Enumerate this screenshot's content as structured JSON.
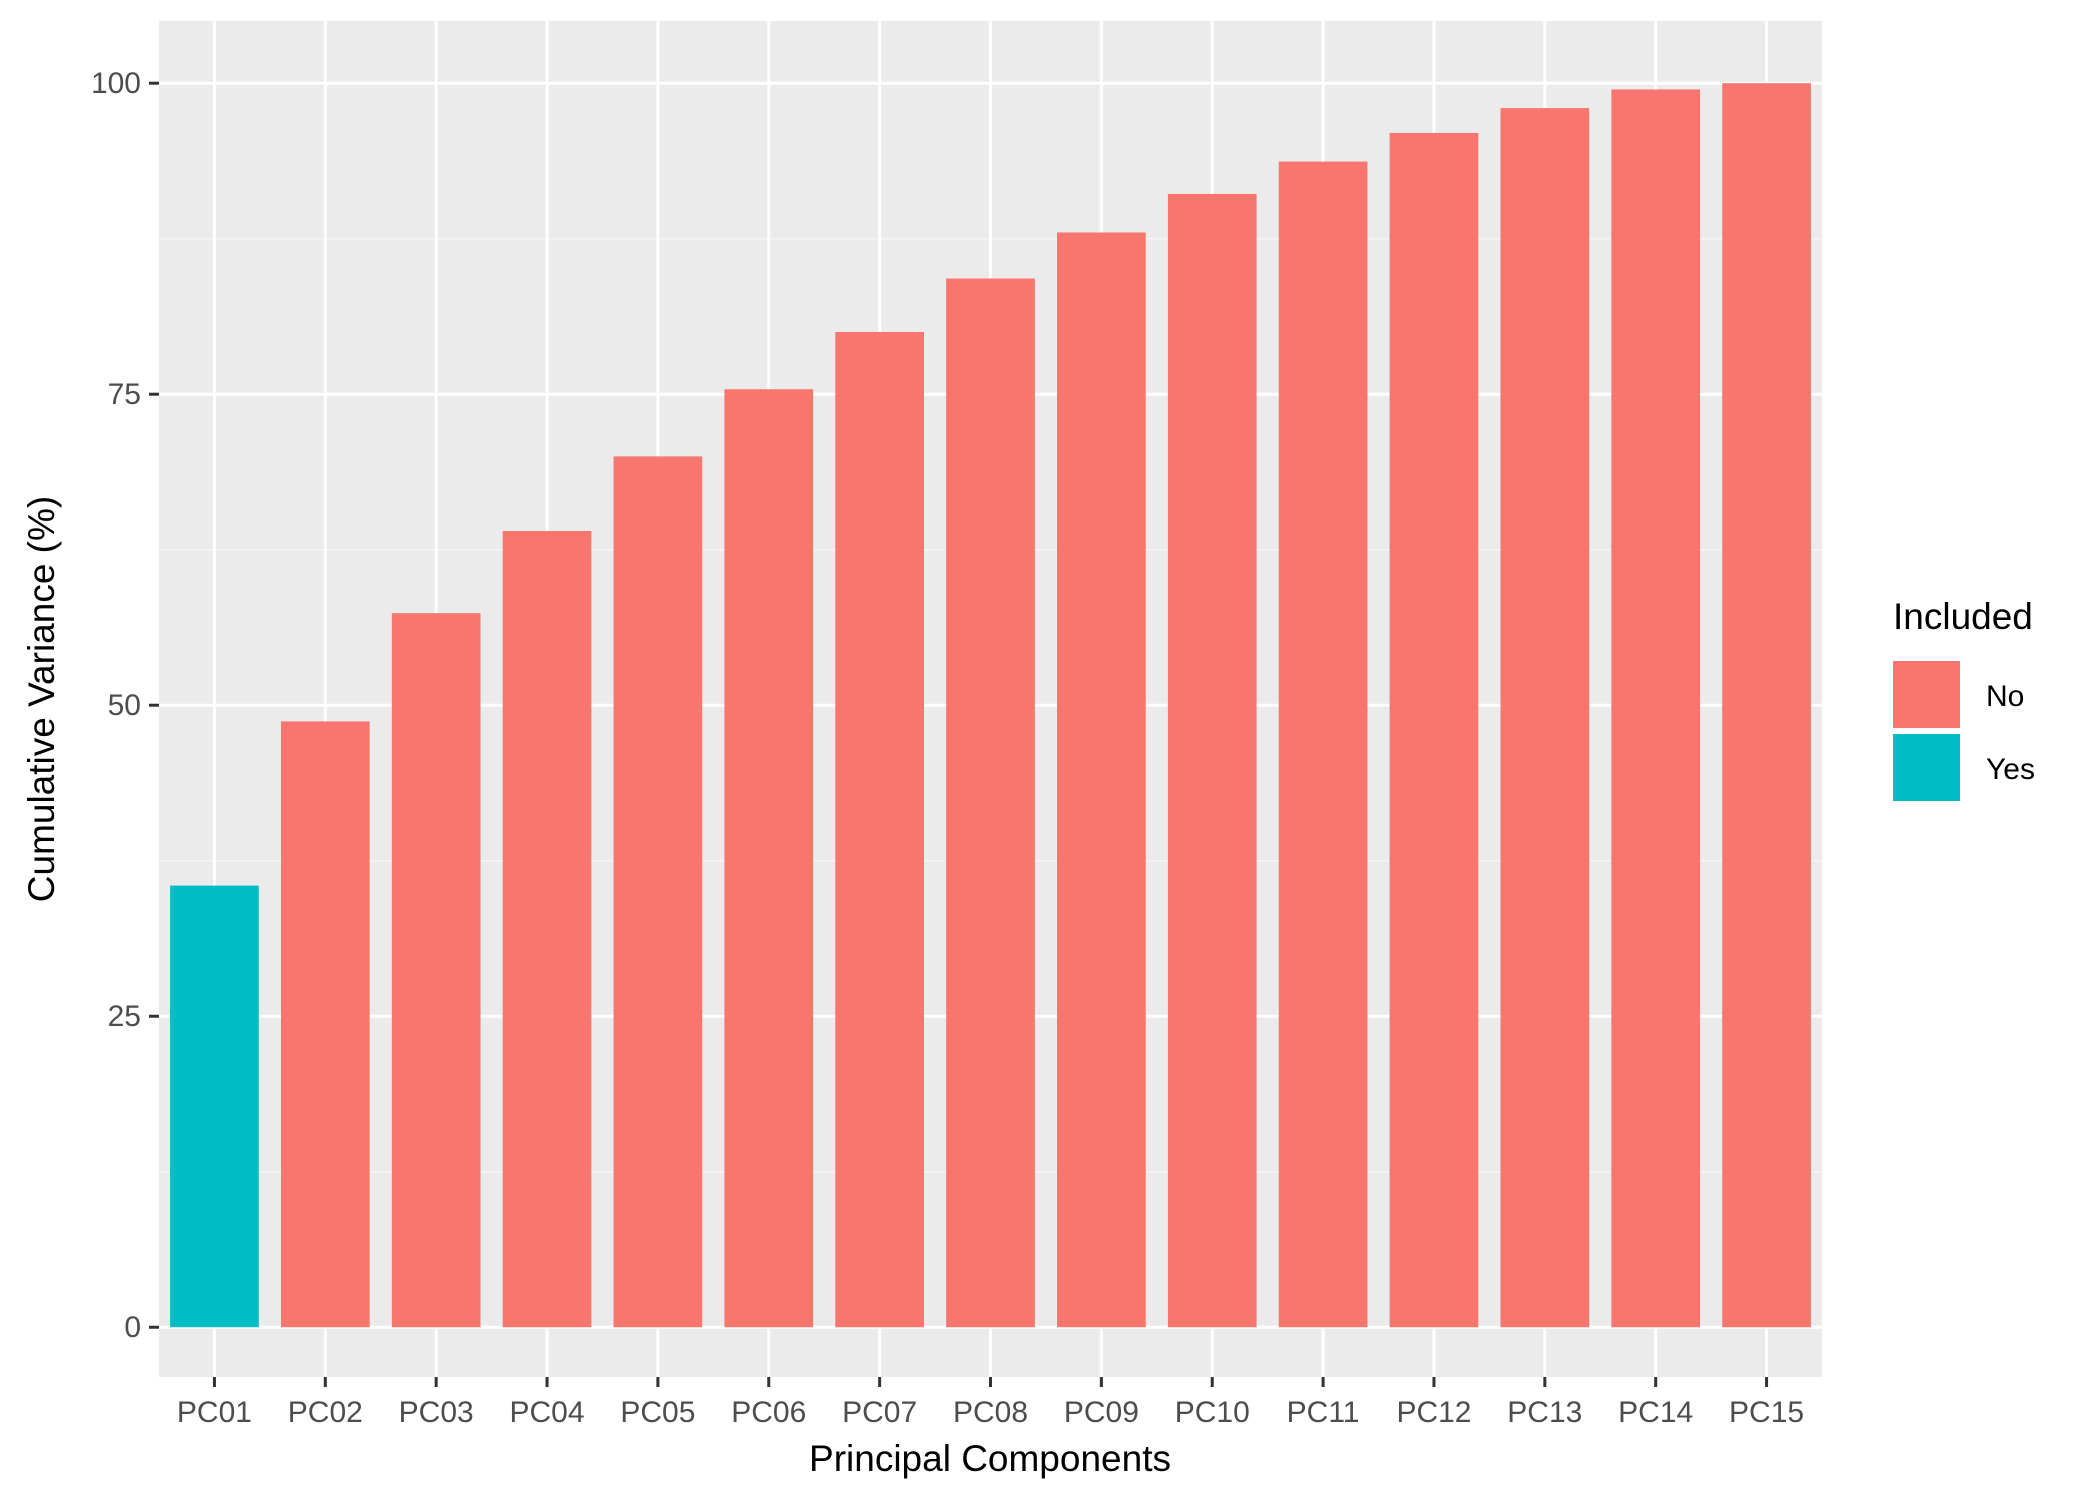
{
  "chart_data": {
    "type": "bar",
    "title": "",
    "xlabel": "Principal Components",
    "ylabel": "Cumulative Variance (%)",
    "categories": [
      "PC01",
      "PC02",
      "PC03",
      "PC04",
      "PC05",
      "PC06",
      "PC07",
      "PC08",
      "PC09",
      "PC10",
      "PC11",
      "PC12",
      "PC13",
      "PC14",
      "PC15"
    ],
    "values": [
      35.5,
      48.7,
      57.4,
      64.0,
      70.0,
      75.4,
      80.0,
      84.3,
      88.0,
      91.1,
      93.7,
      96.0,
      98.0,
      99.5,
      100.0
    ],
    "included": [
      "Yes",
      "No",
      "No",
      "No",
      "No",
      "No",
      "No",
      "No",
      "No",
      "No",
      "No",
      "No",
      "No",
      "No",
      "No"
    ],
    "ylim": [
      -4,
      105
    ],
    "yticks": [
      0,
      25,
      50,
      75,
      100
    ],
    "ytick_labels": [
      "0",
      "25",
      "50",
      "75",
      "100"
    ],
    "grid": true,
    "legend": {
      "title": "Included",
      "position": "right",
      "entries": [
        {
          "label": "No",
          "color": "#F8766D"
        },
        {
          "label": "Yes",
          "color": "#00BFC4"
        }
      ]
    },
    "colors": {
      "panel_background": "#EBEBEB",
      "grid_major": "#FFFFFF",
      "grid_minor": "#F5F5F5",
      "tick_text": "#4D4D4D"
    }
  }
}
